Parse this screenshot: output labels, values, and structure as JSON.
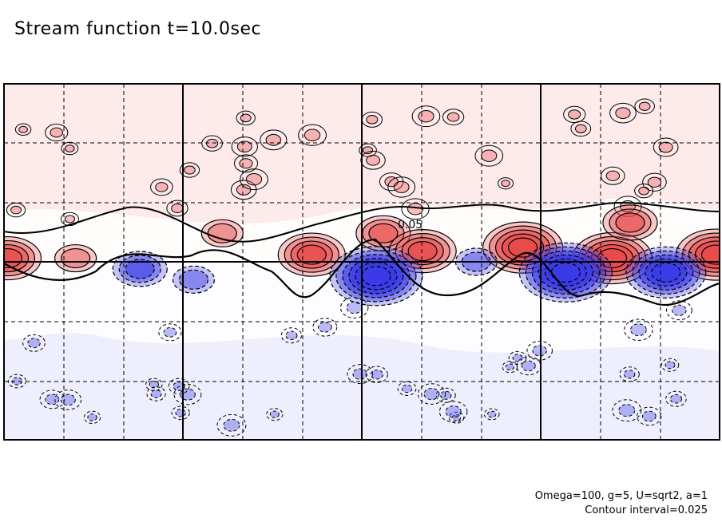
{
  "header": {
    "title": "Stream function t=10.0sec"
  },
  "footer": {
    "params": "Omega=100, g=5, U=sqrt2, a=1",
    "contour_interval": "Contour interval=0.025"
  },
  "colors": {
    "positive": "#e84a4a",
    "negative": "#3a3ae8",
    "positive_light": "#fdeaea",
    "negative_light": "#eaeafd",
    "line": "#000000"
  },
  "chart_data": {
    "type": "heatmap",
    "title": "Stream function t=10.0sec",
    "contour_interval": 0.025,
    "contour_labels": [
      "0.05"
    ],
    "grid": true,
    "note_values": {
      "positive_contours": "solid",
      "negative_contours": "dashed"
    },
    "highs": [
      {
        "x": 0.005,
        "y": 0.49,
        "level": 4
      },
      {
        "x": 0.1,
        "y": 0.49,
        "level": 2
      },
      {
        "x": 0.305,
        "y": 0.42,
        "level": 2
      },
      {
        "x": 0.43,
        "y": 0.48,
        "level": 4
      },
      {
        "x": 0.53,
        "y": 0.42,
        "level": 3
      },
      {
        "x": 0.585,
        "y": 0.47,
        "level": 4
      },
      {
        "x": 0.725,
        "y": 0.46,
        "level": 5
      },
      {
        "x": 0.85,
        "y": 0.49,
        "level": 5
      },
      {
        "x": 0.875,
        "y": 0.39,
        "level": 3
      },
      {
        "x": 0.995,
        "y": 0.48,
        "level": 5
      }
    ],
    "lows": [
      {
        "x": 0.19,
        "y": 0.52,
        "level": 3
      },
      {
        "x": 0.265,
        "y": 0.55,
        "level": 2
      },
      {
        "x": 0.52,
        "y": 0.54,
        "level": 6
      },
      {
        "x": 0.66,
        "y": 0.5,
        "level": 2
      },
      {
        "x": 0.785,
        "y": 0.53,
        "level": 6
      },
      {
        "x": 0.925,
        "y": 0.53,
        "level": 5
      }
    ]
  }
}
